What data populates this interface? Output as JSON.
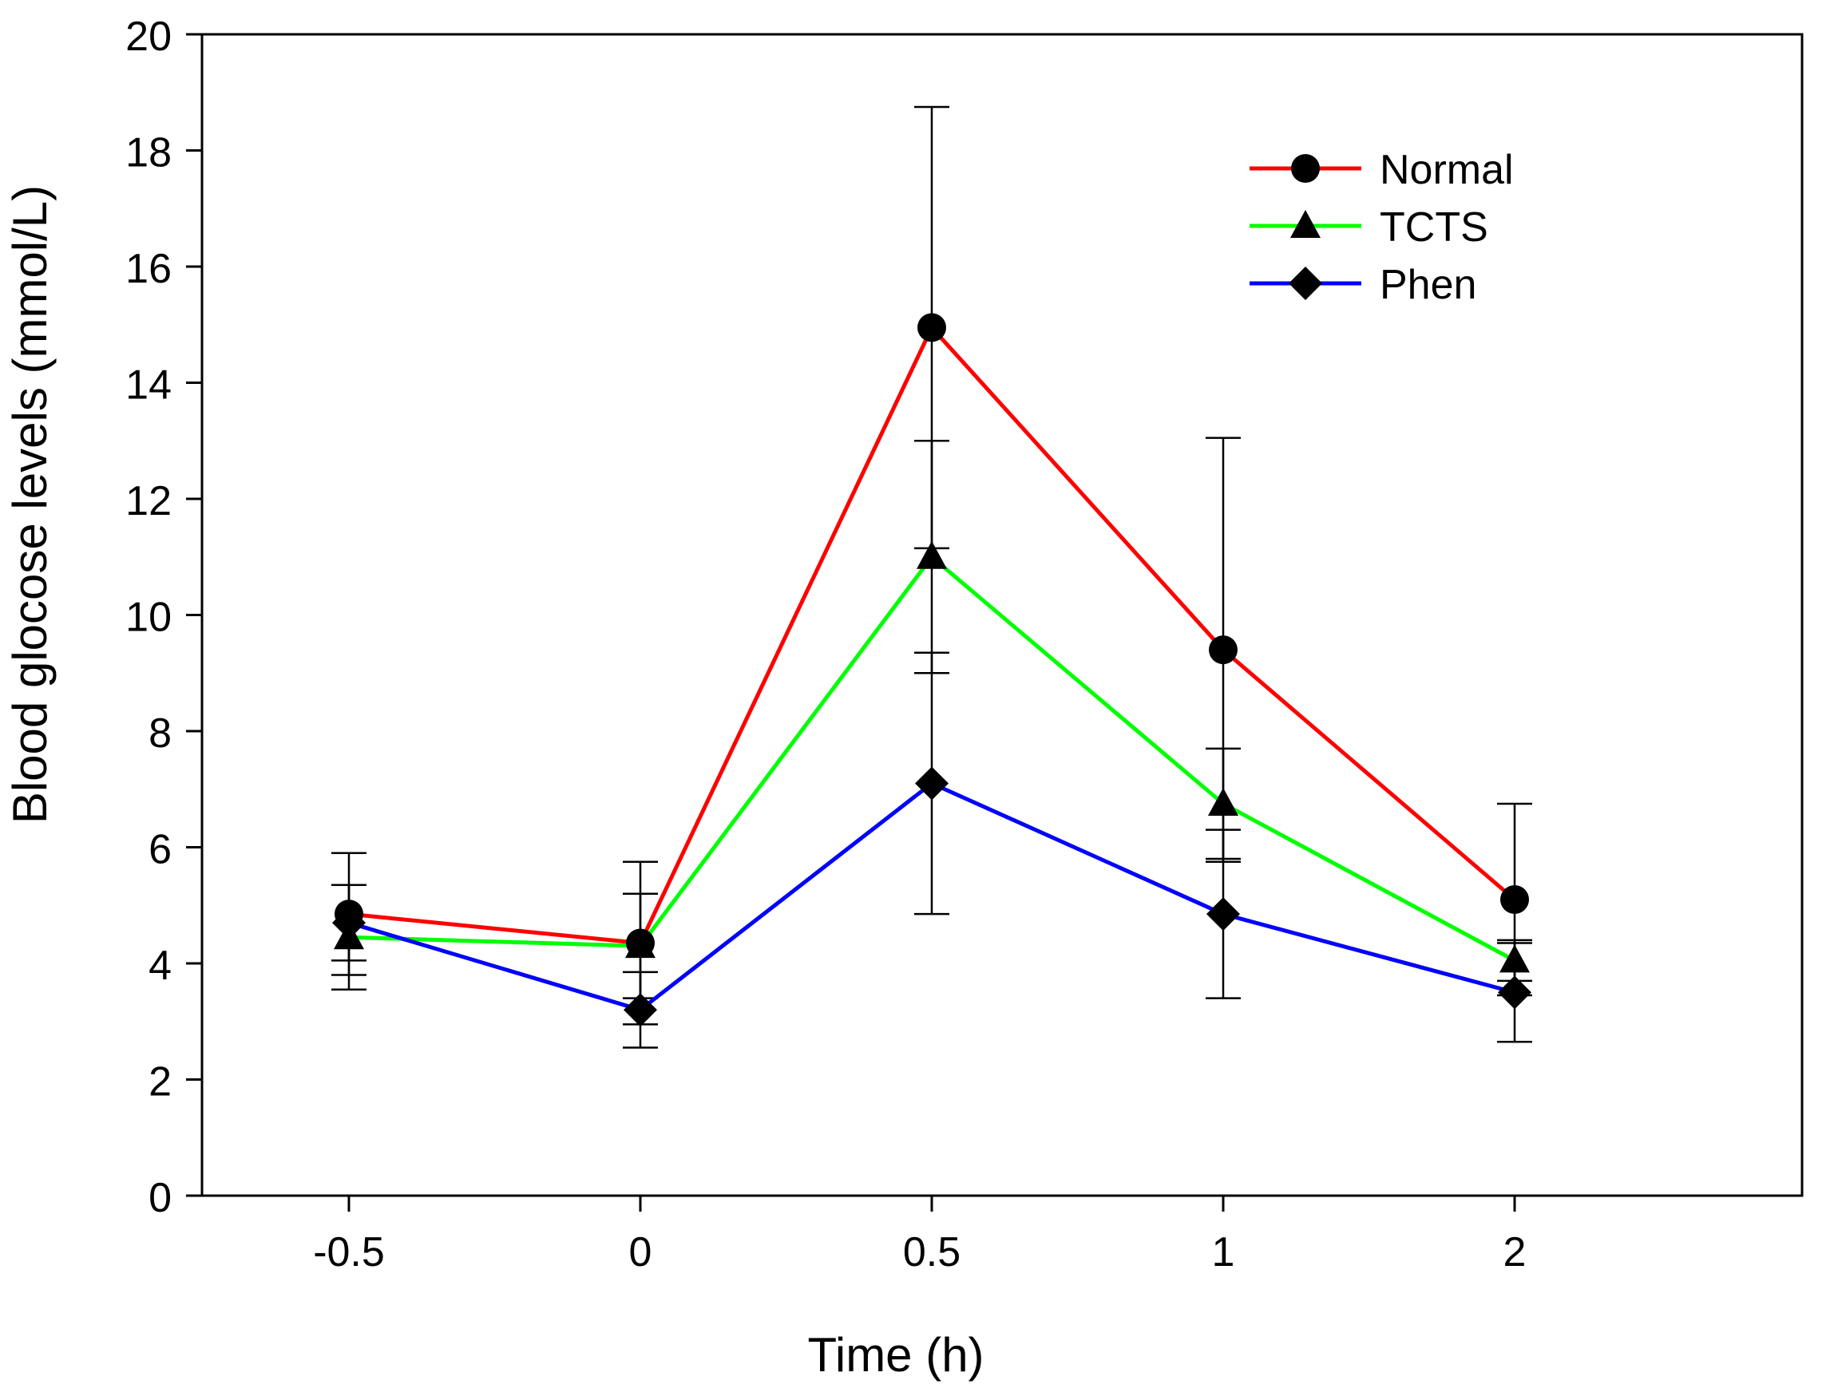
{
  "chart_data": {
    "type": "line",
    "title": "",
    "xlabel": "Time (h)",
    "ylabel": "Blood glocose levels (mmol/L)",
    "categories": [
      "-0.5",
      "0",
      "0.5",
      "1",
      "2"
    ],
    "ylim": [
      0,
      20
    ],
    "yticks": [
      "0",
      "2",
      "4",
      "6",
      "8",
      "10",
      "12",
      "14",
      "16",
      "18",
      "20"
    ],
    "grid": false,
    "legend_position": "top-right",
    "series": [
      {
        "name": "Normal",
        "color": "#ff0000",
        "marker": "circle",
        "values": [
          4.85,
          4.35,
          14.95,
          9.4,
          5.1
        ],
        "errors": [
          1.05,
          1.4,
          3.8,
          3.65,
          1.65
        ]
      },
      {
        "name": "TCTS",
        "color": "#00ff00",
        "marker": "triangle",
        "values": [
          4.45,
          4.3,
          11.0,
          6.75,
          4.05
        ],
        "errors": [
          0.9,
          0.9,
          2.0,
          0.95,
          0.35
        ]
      },
      {
        "name": "Phen",
        "color": "#0000ff",
        "marker": "diamond",
        "values": [
          4.7,
          3.2,
          7.1,
          4.85,
          3.5
        ],
        "errors": [
          0.65,
          0.65,
          2.25,
          1.45,
          0.85
        ]
      }
    ]
  }
}
